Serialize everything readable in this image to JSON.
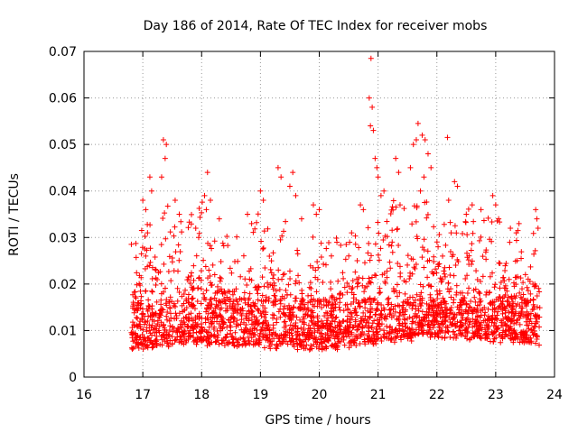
{
  "chart_data": {
    "type": "scatter",
    "title": "Day 186 of 2014, Rate Of TEC Index for receiver mobs",
    "xlabel": "GPS time / hours",
    "ylabel": "ROTI / TECUs",
    "xlim": [
      16,
      24
    ],
    "ylim": [
      0,
      0.07
    ],
    "x_ticks": [
      "16",
      "17",
      "18",
      "19",
      "20",
      "21",
      "22",
      "23",
      "24"
    ],
    "y_ticks": [
      "0",
      "0.01",
      "0.02",
      "0.03",
      "0.04",
      "0.05",
      "0.06",
      "0.07"
    ],
    "grid": true,
    "marker": "+",
    "color": "#ff0000",
    "data_range_hours": [
      16.8,
      23.75
    ],
    "series": [
      {
        "name": "mobs",
        "points": [
          [
            17.35,
            0.051
          ],
          [
            17.4,
            0.05
          ],
          [
            17.38,
            0.047
          ],
          [
            17.32,
            0.043
          ],
          [
            17.12,
            0.043
          ],
          [
            17.15,
            0.04
          ],
          [
            17.55,
            0.038
          ],
          [
            17.62,
            0.035
          ],
          [
            17.0,
            0.038
          ],
          [
            17.05,
            0.036
          ],
          [
            17.08,
            0.031
          ],
          [
            17.9,
            0.032
          ],
          [
            17.95,
            0.03
          ],
          [
            18.1,
            0.044
          ],
          [
            18.05,
            0.039
          ],
          [
            18.15,
            0.038
          ],
          [
            18.08,
            0.036
          ],
          [
            18.3,
            0.034
          ],
          [
            18.78,
            0.035
          ],
          [
            18.85,
            0.033
          ],
          [
            19.0,
            0.04
          ],
          [
            19.05,
            0.038
          ],
          [
            19.3,
            0.045
          ],
          [
            19.35,
            0.043
          ],
          [
            19.55,
            0.044
          ],
          [
            19.5,
            0.041
          ],
          [
            19.6,
            0.039
          ],
          [
            19.7,
            0.034
          ],
          [
            19.9,
            0.037
          ],
          [
            19.95,
            0.035
          ],
          [
            20.0,
            0.036
          ],
          [
            20.3,
            0.029
          ],
          [
            20.55,
            0.031
          ],
          [
            20.7,
            0.037
          ],
          [
            20.75,
            0.036
          ],
          [
            20.88,
            0.0685
          ],
          [
            20.85,
            0.06
          ],
          [
            20.9,
            0.058
          ],
          [
            20.87,
            0.054
          ],
          [
            20.92,
            0.053
          ],
          [
            20.95,
            0.047
          ],
          [
            20.98,
            0.045
          ],
          [
            21.0,
            0.043
          ],
          [
            21.05,
            0.039
          ],
          [
            21.1,
            0.04
          ],
          [
            21.3,
            0.047
          ],
          [
            21.35,
            0.044
          ],
          [
            21.55,
            0.045
          ],
          [
            21.6,
            0.05
          ],
          [
            21.65,
            0.051
          ],
          [
            21.68,
            0.0545
          ],
          [
            21.75,
            0.052
          ],
          [
            21.8,
            0.051
          ],
          [
            21.85,
            0.048
          ],
          [
            21.9,
            0.045
          ],
          [
            21.78,
            0.043
          ],
          [
            21.72,
            0.04
          ],
          [
            22.18,
            0.0515
          ],
          [
            22.3,
            0.042
          ],
          [
            22.35,
            0.041
          ],
          [
            22.2,
            0.038
          ],
          [
            22.5,
            0.035
          ],
          [
            22.6,
            0.037
          ],
          [
            22.75,
            0.036
          ],
          [
            22.95,
            0.039
          ],
          [
            23.0,
            0.037
          ],
          [
            23.05,
            0.034
          ],
          [
            23.25,
            0.032
          ],
          [
            23.35,
            0.031
          ],
          [
            23.68,
            0.036
          ],
          [
            23.7,
            0.034
          ],
          [
            23.72,
            0.032
          ]
        ]
      }
    ],
    "dense_band_profile": [
      [
        17.0,
        0.02
      ],
      [
        17.25,
        0.025
      ],
      [
        17.5,
        0.024
      ],
      [
        17.75,
        0.023
      ],
      [
        18.0,
        0.026
      ],
      [
        18.25,
        0.02
      ],
      [
        18.5,
        0.019
      ],
      [
        18.75,
        0.02
      ],
      [
        19.0,
        0.023
      ],
      [
        19.25,
        0.021
      ],
      [
        19.5,
        0.023
      ],
      [
        19.75,
        0.018
      ],
      [
        20.0,
        0.02
      ],
      [
        20.25,
        0.018
      ],
      [
        20.5,
        0.021
      ],
      [
        20.75,
        0.02
      ],
      [
        21.0,
        0.025
      ],
      [
        21.25,
        0.026
      ],
      [
        21.5,
        0.027
      ],
      [
        21.75,
        0.026
      ],
      [
        22.0,
        0.025
      ],
      [
        22.25,
        0.027
      ],
      [
        22.5,
        0.028
      ],
      [
        22.75,
        0.022
      ],
      [
        23.0,
        0.023
      ],
      [
        23.25,
        0.022
      ],
      [
        23.5,
        0.021
      ],
      [
        23.75,
        0.02
      ]
    ],
    "baseline_profile": [
      [
        17.0,
        0.0065
      ],
      [
        18.0,
        0.0075
      ],
      [
        19.0,
        0.007
      ],
      [
        20.0,
        0.006
      ],
      [
        21.0,
        0.0075
      ],
      [
        22.0,
        0.009
      ],
      [
        23.0,
        0.008
      ],
      [
        23.75,
        0.0075
      ]
    ],
    "dense_point_count": 2600
  }
}
